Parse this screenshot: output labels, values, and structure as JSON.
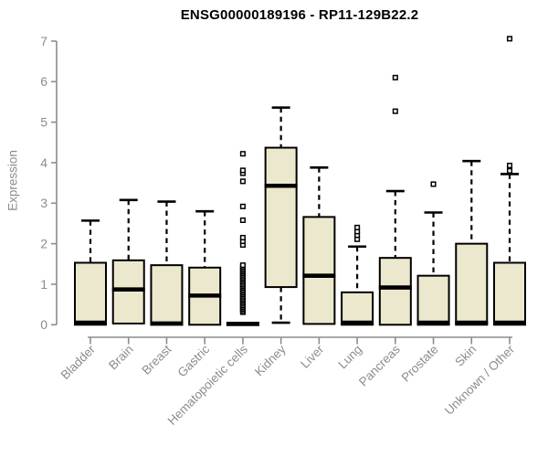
{
  "chart_data": {
    "type": "boxplot",
    "title": "ENSG00000189196 - RP11-129B22.2",
    "ylabel": "Expression",
    "xlabel": "",
    "ylim": [
      0,
      7
    ],
    "yticks": [
      0,
      1,
      2,
      3,
      4,
      5,
      6,
      7
    ],
    "grid": false,
    "legend": false,
    "colors": {
      "box_fill": "#ECE8CD",
      "box_border": "#000000",
      "median": "#000000",
      "whisker": "#000000",
      "outlier": "#000000",
      "axis": "#8C8C8C",
      "tick_text": "#8C8C8C",
      "title_text": "#000000"
    },
    "categories": [
      "Bladder",
      "Brain",
      "Breast",
      "Gastric",
      "Hematopoietic cells",
      "Kidney",
      "Liver",
      "Lung",
      "Pancreas",
      "Prostate",
      "Skin",
      "Unknown / Other"
    ],
    "series": [
      {
        "category": "Bladder",
        "whisker_low": 0,
        "q1": 0,
        "median": 0.05,
        "q3": 1.53,
        "whisker_high": 2.57,
        "outliers": []
      },
      {
        "category": "Brain",
        "whisker_low": 0.03,
        "q1": 0.03,
        "median": 0.87,
        "q3": 1.59,
        "whisker_high": 3.08,
        "outliers": []
      },
      {
        "category": "Breast",
        "whisker_low": 0,
        "q1": 0,
        "median": 0.03,
        "q3": 1.47,
        "whisker_high": 3.04,
        "outliers": []
      },
      {
        "category": "Gastric",
        "whisker_low": 0,
        "q1": 0,
        "median": 0.72,
        "q3": 1.41,
        "whisker_high": 2.8,
        "outliers": []
      },
      {
        "category": "Hematopoietic cells",
        "whisker_low": 0,
        "q1": 0,
        "median": 0.02,
        "q3": 0.05,
        "whisker_high": 0.05,
        "outliers": [
          0.31,
          0.35,
          0.39,
          0.43,
          0.47,
          0.51,
          0.55,
          0.59,
          0.63,
          0.67,
          0.71,
          0.75,
          0.79,
          0.83,
          0.87,
          0.91,
          0.95,
          0.99,
          1.03,
          1.07,
          1.11,
          1.15,
          1.19,
          1.23,
          1.27,
          1.31,
          1.35,
          1.39,
          1.43,
          1.47,
          1.97,
          2.06,
          2.15,
          2.58,
          2.92,
          3.54,
          3.74,
          3.81,
          4.22
        ]
      },
      {
        "category": "Kidney",
        "whisker_low": 0.05,
        "q1": 0.93,
        "median": 3.43,
        "q3": 4.37,
        "whisker_high": 5.36,
        "outliers": []
      },
      {
        "category": "Liver",
        "whisker_low": 0.02,
        "q1": 0.02,
        "median": 1.21,
        "q3": 2.66,
        "whisker_high": 3.88,
        "outliers": []
      },
      {
        "category": "Lung",
        "whisker_low": 0,
        "q1": 0,
        "median": 0.05,
        "q3": 0.8,
        "whisker_high": 1.93,
        "outliers": [
          2.11,
          2.21,
          2.3,
          2.4
        ]
      },
      {
        "category": "Pancreas",
        "whisker_low": 0,
        "q1": 0,
        "median": 0.92,
        "q3": 1.65,
        "whisker_high": 3.3,
        "outliers": [
          5.27,
          6.1
        ]
      },
      {
        "category": "Prostate",
        "whisker_low": 0,
        "q1": 0,
        "median": 0.05,
        "q3": 1.21,
        "whisker_high": 2.77,
        "outliers": [
          3.47
        ]
      },
      {
        "category": "Skin",
        "whisker_low": 0,
        "q1": 0,
        "median": 0.05,
        "q3": 2.0,
        "whisker_high": 4.04,
        "outliers": []
      },
      {
        "category": "Unknown / Other",
        "whisker_low": 0,
        "q1": 0,
        "median": 0.05,
        "q3": 1.53,
        "whisker_high": 3.72,
        "outliers": [
          3.8,
          3.93,
          7.06
        ]
      }
    ]
  }
}
